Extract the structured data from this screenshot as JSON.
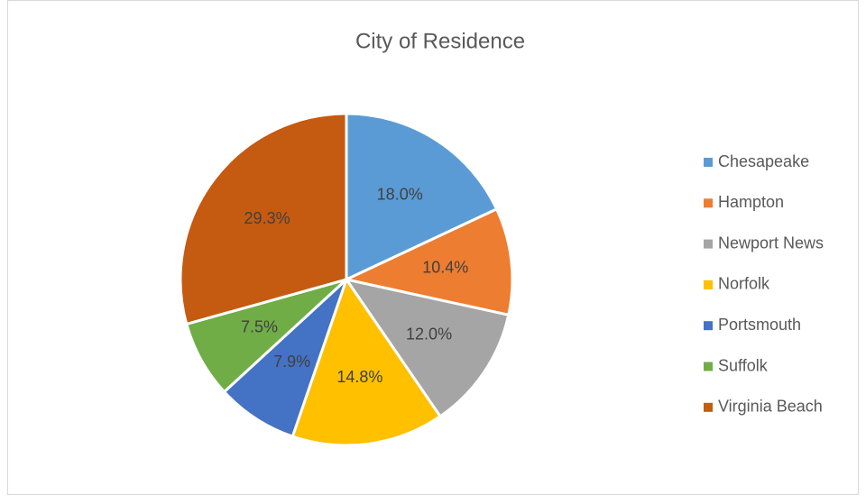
{
  "chart_data": {
    "type": "pie",
    "title": "City of Residence",
    "categories": [
      "Chesapeake",
      "Hampton",
      "Newport News",
      "Norfolk",
      "Portsmouth",
      "Suffolk",
      "Virginia Beach"
    ],
    "values": [
      18.0,
      10.4,
      12.0,
      14.8,
      7.9,
      7.5,
      29.3
    ],
    "value_labels": [
      "18.0%",
      "10.4%",
      "12.0%",
      "14.8%",
      "7.9%",
      "7.5%",
      "29.3%"
    ],
    "colors": [
      "#5b9bd5",
      "#ed7d31",
      "#a5a5a5",
      "#ffc000",
      "#4472c4",
      "#70ad47",
      "#c55a11"
    ],
    "legend": "right"
  }
}
